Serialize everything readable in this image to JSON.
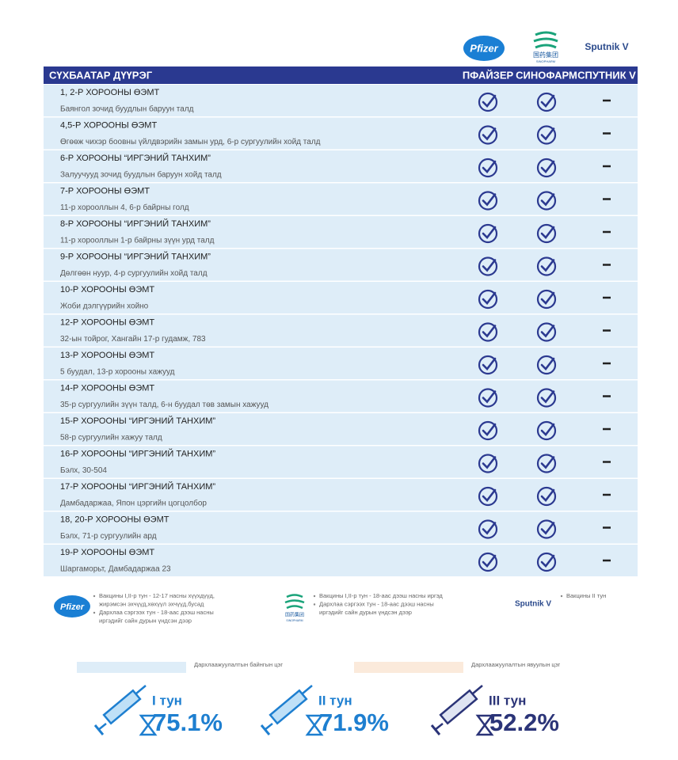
{
  "logos": {
    "pfizer": "Pfizer",
    "sinopharm": [
      "国药集团",
      "SINOPHARM"
    ],
    "sputnik": "Sputnik V"
  },
  "table": {
    "header": [
      "СҮХБААТАР ДҮҮРЭГ",
      "ПФАЙЗЕР",
      "СИНОФАРМ",
      "СПУТНИК V"
    ],
    "rows": [
      {
        "name": "1, 2-Р ХОРООНЫ ӨЭМТ",
        "address": "Баянгол зочид буудлын баруун талд",
        "available": [
          true,
          true,
          false
        ]
      },
      {
        "name": "4,5-Р ХОРООНЫ ӨЭМТ",
        "address": "Өгөөж чихэр боовны үйлдвэрийн замын урд, 6-р сургуулийн хойд талд",
        "available": [
          true,
          true,
          false
        ]
      },
      {
        "name": "6-Р ХОРООНЫ “ИРГЭНИЙ ТАНХИМ”",
        "address": "Залуучууд зочид буудлын баруун хойд талд",
        "available": [
          true,
          true,
          false
        ]
      },
      {
        "name": "7-Р ХОРООНЫ ӨЭМТ",
        "address": "11-р хорооллын 4, 6-р байрны голд",
        "available": [
          true,
          true,
          false
        ]
      },
      {
        "name": "8-Р ХОРООНЫ “ИРГЭНИЙ ТАНХИМ”",
        "address": "11-р хорооллын 1-р байрны зүүн урд талд",
        "available": [
          true,
          true,
          false
        ]
      },
      {
        "name": "9-Р ХОРООНЫ “ИРГЭНИЙ ТАНХИМ”",
        "address": "Дөлгөөн нуур, 4-р сургуулийн хойд талд",
        "available": [
          true,
          true,
          false
        ]
      },
      {
        "name": "10-Р ХОРООНЫ ӨЭМТ",
        "address": "Жоби дэлгүүрийн хойно",
        "available": [
          true,
          true,
          false
        ]
      },
      {
        "name": "12-Р ХОРООНЫ ӨЭМТ",
        "address": "32-ын тойрог, Хангайн 17-р гудамж, 783",
        "available": [
          true,
          true,
          false
        ]
      },
      {
        "name": "13-Р ХОРООНЫ ӨЭМТ",
        "address": "5 буудал, 13-р хорооны хажууд",
        "available": [
          true,
          true,
          false
        ]
      },
      {
        "name": "14-Р ХОРООНЫ ӨЭМТ",
        "address": "35-р сургуулийн зүүн талд, 6-н буудал төв замын хажууд",
        "available": [
          true,
          true,
          false
        ]
      },
      {
        "name": "15-Р ХОРООНЫ “ИРГЭНИЙ ТАНХИМ”",
        "address": "58-р сургуулийн хажуу талд",
        "available": [
          true,
          true,
          false
        ]
      },
      {
        "name": "16-Р ХОРООНЫ “ИРГЭНИЙ ТАНХИМ”",
        "address": "Бэлх, 30-504",
        "available": [
          true,
          true,
          false
        ]
      },
      {
        "name": "17-Р ХОРООНЫ “ИРГЭНИЙ ТАНХИМ”",
        "address": "Дамбадаржаа, Япон цэргийн цогцолбор",
        "available": [
          true,
          true,
          false
        ]
      },
      {
        "name": "18, 20-Р ХОРООНЫ ӨЭМТ",
        "address": "Бэлх, 71-р сургуулийн ард",
        "available": [
          true,
          true,
          false
        ]
      },
      {
        "name": "19-Р ХОРООНЫ ӨЭМТ",
        "address": "Шаргаморьт, Дамбадаржаа 23",
        "available": [
          true,
          true,
          false
        ]
      }
    ]
  },
  "notes": [
    {
      "items": [
        [
          "Вакцины I,II-р тун - 12-17 насны хүүхдүүд,",
          "жирэмсэн эхчүүд,хөхүүл эхчүүд,бусад"
        ],
        [
          "Дархлаа сэргээх тун - 18-аас дээш насны",
          "иргэдийг сайн дурын үндсэн дээр"
        ]
      ]
    },
    {
      "items": [
        [
          "Вакцины I,II-р тун - 18-аас дээш насны иргэд"
        ],
        [
          "Дархлаа сэргээх тун - 18-аас дээш насны",
          "иргэдийг сайн дурын үндсэн дээр"
        ]
      ]
    },
    {
      "items": [
        [
          "Вакцины II тун"
        ]
      ]
    }
  ],
  "legend": [
    "Дархлаажуулалтын байнгын цэг",
    "Дархлаажуулалтын явуулын цэг"
  ],
  "doses": [
    {
      "label": "I тун",
      "value": "75.1%"
    },
    {
      "label": "II тун",
      "value": "71.9%"
    },
    {
      "label": "III тун",
      "value": "52.2%"
    }
  ]
}
